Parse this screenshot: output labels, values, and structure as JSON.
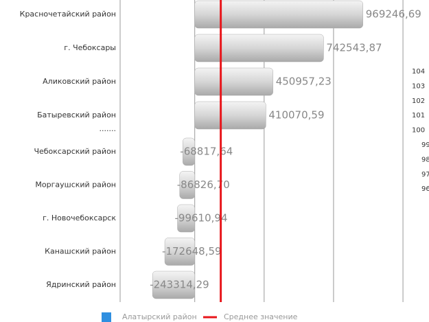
{
  "chart_data": {
    "type": "hbar",
    "categories": [
      "Красночетайский район",
      "г. Чебоксары",
      "Аликовский район",
      "Батыревский район",
      ".......",
      "Чебоксарский район",
      "Моргаушский район",
      "г. Новочебоксарск",
      "Канашский район",
      "Ядринский район"
    ],
    "values": [
      969246.69,
      742543.87,
      450957.23,
      410070.59,
      null,
      -68817.64,
      -86826.7,
      -99610.94,
      -172648.59,
      -243314.29
    ],
    "value_labels": [
      "969246,69",
      "742543,87",
      "450957,23",
      "410070,59",
      null,
      "-68817,64",
      "-86826,70",
      "-99610,94",
      "-172648,59",
      "-243314,29"
    ],
    "series_name": "Алатырский район",
    "color": "#c8c8c8",
    "legend_color": "#2f8fe0",
    "mean_line": {
      "name": "Среднее значение",
      "value": 150000,
      "color": "#e8161b"
    },
    "xlim": [
      -430000,
      1350000
    ],
    "xticks": [
      0,
      400000,
      800000,
      1200000
    ],
    "grid": true,
    "side_labels": [
      104,
      103,
      102,
      101,
      100,
      99,
      98,
      97,
      96
    ]
  }
}
